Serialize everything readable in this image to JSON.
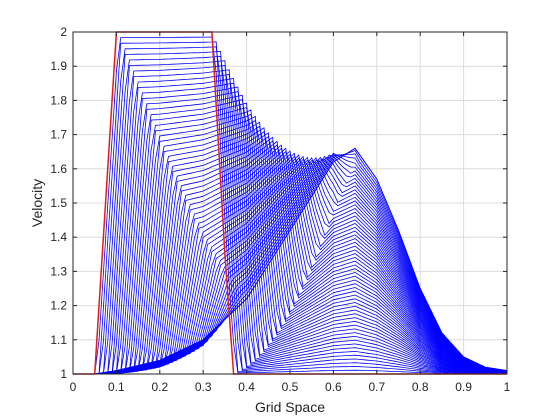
{
  "chart_data": {
    "type": "line",
    "title": "",
    "xlabel": "Grid Space",
    "ylabel": "Velocity",
    "xlim": [
      0,
      1
    ],
    "ylim": [
      1,
      2
    ],
    "xticks": [
      "0",
      "0.1",
      "0.2",
      "0.3",
      "0.4",
      "0.5",
      "0.6",
      "0.7",
      "0.8",
      "0.9",
      "1"
    ],
    "yticks": [
      "1",
      "1.1",
      "1.2",
      "1.3",
      "1.4",
      "1.5",
      "1.6",
      "1.7",
      "1.8",
      "1.9",
      "2"
    ],
    "grid": true,
    "colors": {
      "initial": "#e41a1c",
      "evolution": "#0000ff",
      "grid": "#dcdcdc",
      "axes": "#262626"
    },
    "series": [
      {
        "role": "initial",
        "x": [
          0,
          0.05,
          0.1,
          0.15,
          0.2,
          0.25,
          0.3,
          0.32,
          0.35,
          0.37,
          0.4,
          0.5,
          0.6,
          0.7,
          0.8,
          0.9,
          1.0
        ],
        "y": [
          1,
          1,
          2,
          2,
          2,
          2,
          2,
          2,
          1.35,
          1,
          1,
          1,
          1,
          1,
          1,
          1,
          1
        ]
      },
      {
        "role": "final",
        "x": [
          0,
          0.05,
          0.1,
          0.2,
          0.3,
          0.4,
          0.5,
          0.6,
          0.65,
          0.7,
          0.75,
          0.8,
          0.85,
          0.9,
          0.95,
          1.0
        ],
        "y": [
          1,
          1,
          1.01,
          1.04,
          1.1,
          1.22,
          1.42,
          1.62,
          1.66,
          1.57,
          1.42,
          1.25,
          1.12,
          1.05,
          1.02,
          1.01
        ]
      }
    ],
    "frames": 60,
    "crest_points": [
      [
        0.16,
        1.98
      ],
      [
        0.24,
        2.0
      ],
      [
        0.32,
        2.0
      ],
      [
        0.35,
        1.94
      ],
      [
        0.38,
        1.91
      ],
      [
        0.42,
        1.88
      ],
      [
        0.46,
        1.85
      ],
      [
        0.5,
        1.82
      ],
      [
        0.54,
        1.78
      ],
      [
        0.58,
        1.74
      ],
      [
        0.62,
        1.7
      ],
      [
        0.65,
        1.66
      ]
    ]
  }
}
